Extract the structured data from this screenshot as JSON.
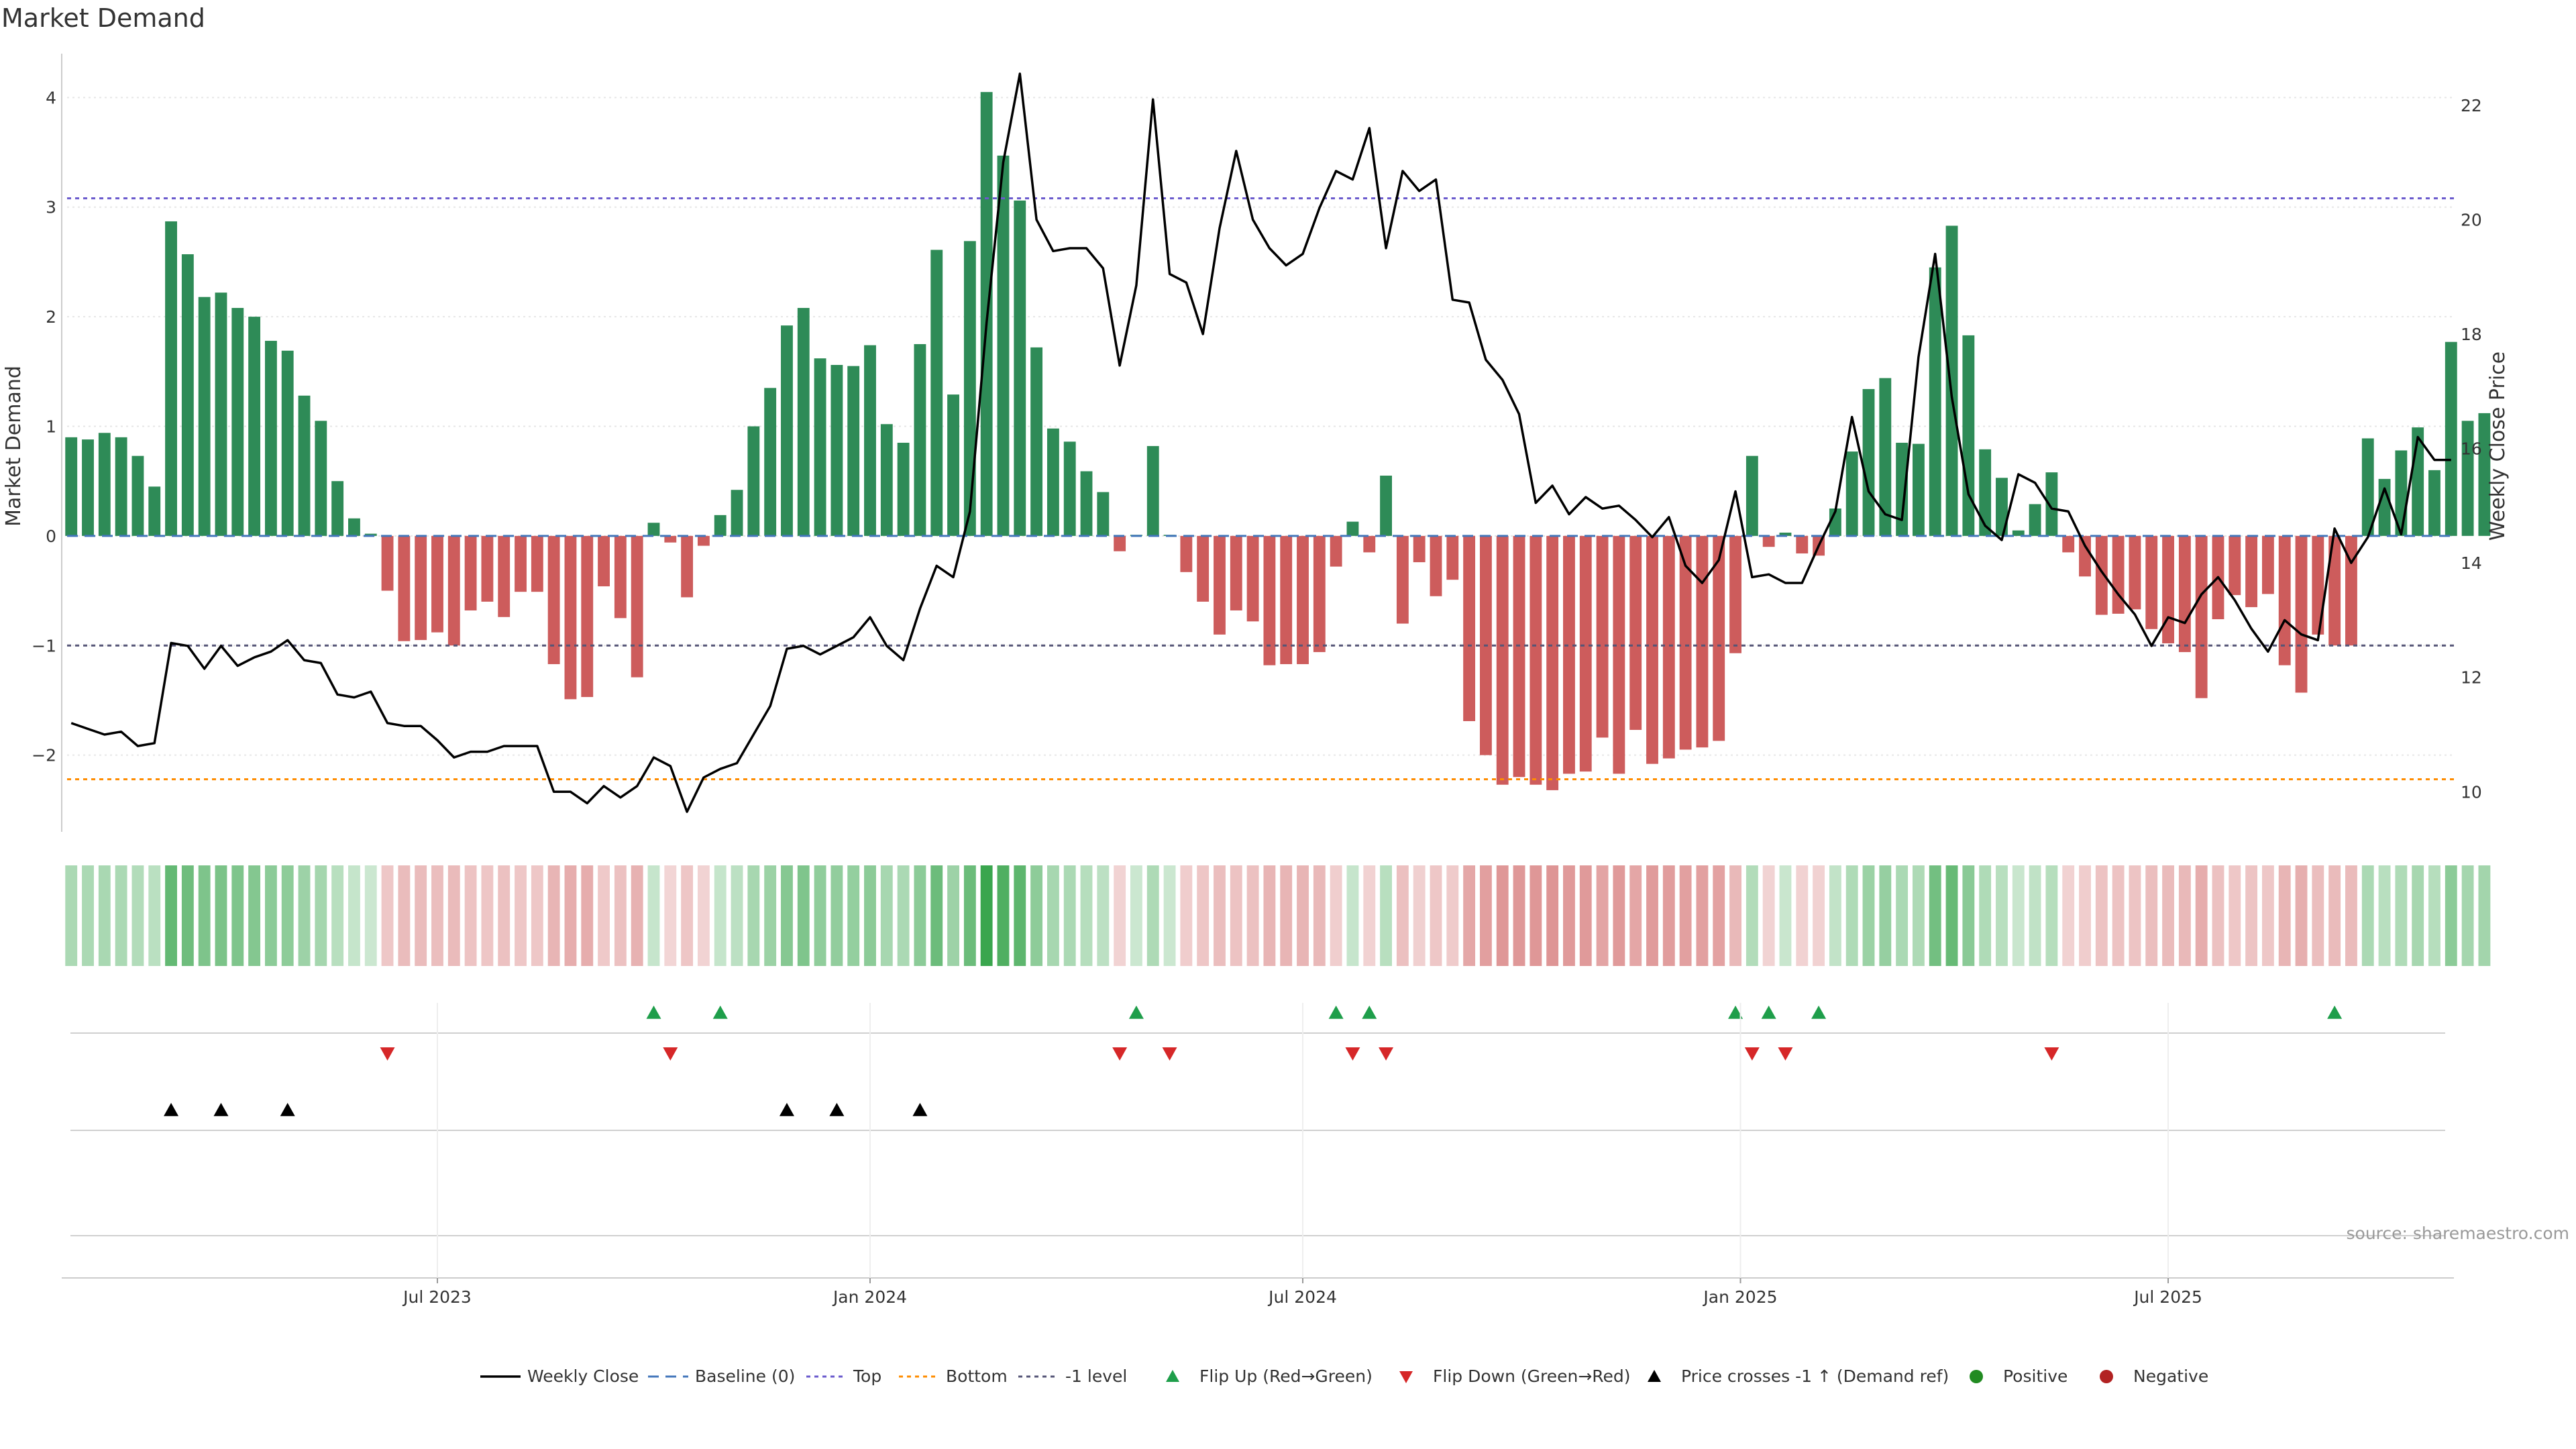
{
  "title": "Market Demand",
  "source": "source: sharemaestro.com",
  "colors": {
    "positive": "#2e8b57",
    "negative": "#cd5c5c",
    "price": "#000000",
    "top": "#6a5acd",
    "bottom": "#ff8c00",
    "minus1": "#555577",
    "baseline": "#4477bb",
    "flip_up": "#1e9e4a",
    "flip_down": "#d62728",
    "cross": "#000000",
    "grid": "#e6e6e6",
    "dot_pos": "#228b22",
    "dot_neg": "#b22222"
  },
  "chart_data": {
    "type": "bar",
    "title": "Market Demand",
    "ylabel": "Market Demand",
    "y2label": "Weekly Close Price",
    "ylim": [
      -2.7,
      4.4
    ],
    "y2lim": [
      9.3,
      22.9
    ],
    "yticks": [
      -2,
      -1,
      0,
      1,
      2,
      3,
      4
    ],
    "y2ticks": [
      10,
      12,
      14,
      16,
      18,
      20,
      22
    ],
    "x_start": "2023-02-05",
    "week_count": 144,
    "x_range_weeks": [
      -0.25,
      143.25
    ],
    "xticks": [
      {
        "label": "Jul 2023",
        "week": 22
      },
      {
        "label": "Jan 2024",
        "week": 48
      },
      {
        "label": "Jul 2024",
        "week": 74
      },
      {
        "label": "Jan 2025",
        "week": 100.3
      },
      {
        "label": "Jul 2025",
        "week": 126
      }
    ],
    "reference_lines": {
      "top": 3.08,
      "bottom": -2.22,
      "minus1": -1.0,
      "baseline": 0
    },
    "demand": [
      0.9,
      0.88,
      0.94,
      0.9,
      0.73,
      0.45,
      2.87,
      2.57,
      2.18,
      2.22,
      2.08,
      2.0,
      1.78,
      1.69,
      1.28,
      1.05,
      0.5,
      0.16,
      0.02,
      -0.5,
      -0.96,
      -0.95,
      -0.88,
      -1.0,
      -0.68,
      -0.6,
      -0.74,
      -0.51,
      -0.51,
      -1.17,
      -1.49,
      -1.47,
      -0.46,
      -0.75,
      -1.29,
      0.12,
      -0.06,
      -0.56,
      -0.09,
      0.19,
      0.42,
      1.0,
      1.35,
      1.92,
      2.08,
      1.62,
      1.56,
      1.55,
      1.74,
      1.02,
      0.85,
      1.75,
      2.61,
      1.29,
      2.69,
      4.05,
      3.47,
      3.06,
      1.72,
      0.98,
      0.86,
      0.59,
      0.4,
      -0.14,
      0.01,
      0.82,
      0.01,
      -0.33,
      -0.6,
      -0.9,
      -0.68,
      -0.78,
      -1.18,
      -1.17,
      -1.17,
      -1.06,
      -0.28,
      0.13,
      -0.15,
      0.55,
      -0.8,
      -0.24,
      -0.55,
      -0.4,
      -1.69,
      -2.0,
      -2.27,
      -2.2,
      -2.27,
      -2.32,
      -2.17,
      -2.15,
      -1.84,
      -2.17,
      -1.77,
      -2.08,
      -2.03,
      -1.95,
      -1.93,
      -1.87,
      -1.07,
      0.73,
      -0.1,
      0.03,
      -0.16,
      -0.18,
      0.25,
      0.77,
      1.34,
      1.44,
      0.85,
      0.84,
      2.45,
      2.83,
      1.83,
      0.79,
      0.53,
      0.05,
      0.29,
      0.58,
      -0.15,
      -0.37,
      -0.72,
      -0.71,
      -0.67,
      -0.85,
      -0.98,
      -1.06,
      -1.48,
      -0.76,
      -0.54,
      -0.65,
      -0.53,
      -1.18,
      -1.43,
      -0.9,
      -1.0,
      -1.0,
      0.89,
      0.52,
      0.78,
      0.99,
      0.6,
      1.77,
      1.05,
      1.12
    ],
    "price": [
      11.2,
      11.1,
      11.0,
      11.05,
      10.8,
      10.85,
      12.6,
      12.55,
      12.15,
      12.55,
      12.2,
      12.35,
      12.45,
      12.65,
      12.3,
      12.25,
      11.7,
      11.65,
      11.75,
      11.2,
      11.15,
      11.15,
      10.9,
      10.6,
      10.7,
      10.7,
      10.8,
      10.8,
      10.8,
      10.0,
      10.0,
      9.8,
      10.1,
      9.9,
      10.1,
      10.6,
      10.45,
      9.65,
      10.25,
      10.4,
      10.5,
      11.0,
      11.5,
      12.5,
      12.55,
      12.4,
      12.55,
      12.7,
      13.05,
      12.55,
      12.3,
      13.2,
      13.95,
      13.75,
      14.9,
      18.2,
      21.0,
      22.55,
      20.0,
      19.45,
      19.5,
      19.5,
      19.15,
      17.45,
      18.85,
      22.1,
      19.05,
      18.9,
      18.0,
      19.85,
      21.2,
      20.0,
      19.5,
      19.2,
      19.4,
      20.2,
      20.85,
      20.7,
      21.6,
      19.5,
      20.85,
      20.5,
      20.7,
      18.6,
      18.55,
      17.55,
      17.2,
      16.6,
      15.05,
      15.35,
      14.85,
      15.15,
      14.95,
      15.0,
      14.75,
      14.45,
      14.8,
      13.95,
      13.65,
      14.05,
      15.25,
      13.75,
      13.8,
      13.65,
      13.65,
      14.3,
      14.9,
      16.55,
      15.25,
      14.85,
      14.75,
      17.6,
      19.4,
      16.9,
      15.2,
      14.65,
      14.4,
      15.55,
      15.4,
      14.95,
      14.9,
      14.3,
      13.85,
      13.45,
      13.1,
      12.55,
      13.05,
      12.95,
      13.45,
      13.75,
      13.35,
      12.85,
      12.45,
      13.0,
      12.75,
      12.65,
      14.6,
      14.0,
      14.45,
      15.3,
      14.5,
      16.2,
      15.8,
      15.8
    ],
    "flip_up_weeks": [
      35,
      39,
      64,
      76,
      78,
      100,
      102,
      105,
      136
    ],
    "flip_down_weeks": [
      19,
      36,
      63,
      66,
      77,
      79,
      101,
      103,
      119
    ],
    "cross_weeks": [
      6,
      9,
      13,
      43,
      46,
      51
    ],
    "x_axis_ticks": [
      "Jul 2023",
      "Jan 2024",
      "Jul 2024",
      "Jan 2025",
      "Jul 2025"
    ]
  },
  "legend": [
    {
      "key": "line",
      "label": "Weekly Close"
    },
    {
      "key": "baseline",
      "label": "Baseline (0)"
    },
    {
      "key": "top",
      "label": "Top"
    },
    {
      "key": "bottom",
      "label": "Bottom"
    },
    {
      "key": "minus1",
      "label": "-1 level"
    },
    {
      "key": "flip_up",
      "label": "Flip Up (Red→Green)"
    },
    {
      "key": "flip_down",
      "label": "Flip Down (Green→Red)"
    },
    {
      "key": "cross",
      "label": "Price crosses -1 ↑ (Demand ref)"
    },
    {
      "key": "dot_pos",
      "label": "Positive"
    },
    {
      "key": "dot_neg",
      "label": "Negative"
    }
  ]
}
